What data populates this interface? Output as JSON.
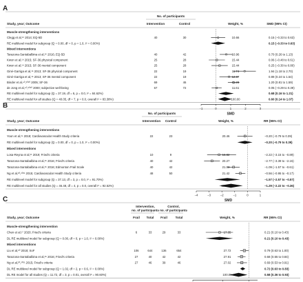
{
  "colors": {
    "text": "#222222",
    "rule": "#999999",
    "marker": "#111111",
    "refline": "#666666",
    "box": "#bbbbbb"
  },
  "chart_data": [
    {
      "type": "forest",
      "panel_label": "A",
      "header": {
        "study": "Study, year; Outcome",
        "group": "No. of participants",
        "n1": "Intervention",
        "n2": "Control",
        "weight": "Weight, %",
        "effect": "SMD (95% CI)"
      },
      "xlabel": "SMD",
      "xlim": [
        -1,
        3
      ],
      "ticks": [
        -1,
        0,
        1,
        2,
        3
      ],
      "ref": 0,
      "rows": [
        {
          "kind": "category",
          "label": "Muscle-strengthening interventions"
        },
        {
          "kind": "study",
          "label": "Clegg et al,¹⁹ 2014; EQ-5D",
          "n1": "40",
          "n2": "30",
          "weight": "10.66",
          "ci_text": "0.15 (−0.33 to 0.63)",
          "est": 0.15,
          "lo": -0.33,
          "hi": 0.63
        },
        {
          "kind": "pooled",
          "label": "RE multilevel model for subgroup (Q = 0.00, df = 0, p = 1.0, I² = 0.00%)",
          "ci_text": "0.15 (−0.33 to 0.63)",
          "est": 0.15,
          "lo": -0.33,
          "hi": 0.63
        },
        {
          "kind": "category",
          "label": "Mixed interventions"
        },
        {
          "kind": "study",
          "label": "Tarazona-Santabalbina et al,²⁵ 2016; EQ-5D",
          "n1": "40",
          "n2": "42",
          "weight": "10.96",
          "ci_text": "0.70 (0.26 to 1.13)",
          "est": 0.7,
          "lo": 0.26,
          "hi": 1.13
        },
        {
          "kind": "study",
          "label": "Kwon et al,¹⁸ 2015; SF-36 physical component",
          "n1": "25",
          "n2": "28",
          "weight": "15.44",
          "ci_text": "0.06 (−0.48 to 0.61)",
          "est": 0.06,
          "lo": -0.48,
          "hi": 0.61
        },
        {
          "kind": "study",
          "label": "Kwon et al,¹⁸ 2015; SF-36 mental component",
          "n1": "25",
          "n2": "28",
          "weight": "15.44",
          "ci_text": "0.25 (−0.30 to 0.80)",
          "est": 0.25,
          "lo": -0.3,
          "hi": 0.8
        },
        {
          "kind": "study",
          "label": "Giné-Garriga et al,¹⁵ 2013; SF-36 physical component",
          "n1": "22",
          "n2": "19",
          "weight": "11.74",
          "ci_text": "1.94 (1.18 to 2.70)",
          "est": 1.94,
          "lo": 1.18,
          "hi": 2.7
        },
        {
          "kind": "study",
          "label": "Giné-Garriga et al,¹⁵ 2013; SF-36 mental component",
          "n1": "22",
          "n2": "19",
          "weight": "12.87",
          "ci_text": "0.89 (0.24 to 1.54)",
          "est": 0.89,
          "lo": 0.24,
          "hi": 1.54
        },
        {
          "kind": "study",
          "label": "Binder et al,⁴⁰,²⁰²⁰ 2005; SF-36",
          "n1": "69",
          "n2": "46",
          "weight": "11.28",
          "ci_text": "1.20 (0.81 to 1.59)",
          "est": 1.2,
          "lo": 0.81,
          "hi": 1.59
        },
        {
          "kind": "study",
          "label": "de Jong et al,⁴⁰,²⁰²⁰ 2000; subjective well-being",
          "n1": "67",
          "n2": "72",
          "weight": "11.61",
          "ci_text": "0.05 (−0.29 to 0.39)",
          "est": 0.05,
          "lo": -0.29,
          "hi": 0.39
        },
        {
          "kind": "pooled",
          "label": "RE multilevel model for subgroup (Q = 37.19, df = 6, p = 0.0, I² = 84.62%)",
          "ci_text": "0.68 (0.16 to 1.21)",
          "est": 0.68,
          "lo": 0.16,
          "hi": 1.21
        },
        {
          "kind": "overall",
          "label": "RE multilevel model for all studies (Q = 40.05, df = 7, p = 0.0, overall I² = 83.38%)",
          "weight": "100.00",
          "ci_text": "0.60 (0.14 to 1.07)",
          "est": 0.6,
          "lo": 0.14,
          "hi": 1.07
        }
      ]
    },
    {
      "type": "forest",
      "panel_label": "B",
      "header": {
        "study": "Study, year; Outcome",
        "group": "No. of participants",
        "n1": "Intervention",
        "n2": "Control",
        "weight": "Weight, %",
        "effect": "RR (95% CI)"
      },
      "xlabel": "SMD",
      "xlim": [
        -4,
        1
      ],
      "ticks": [
        -4,
        -3,
        -2,
        -1,
        0,
        1
      ],
      "ref": 0,
      "rows": [
        {
          "kind": "category",
          "label": "Muscle-strengthening interventions"
        },
        {
          "kind": "study",
          "label": "Yoon et al,²⁴ 2018; Cardiovascular Health Study criteria",
          "n1": "22",
          "n2": "23",
          "weight": "20.46",
          "ci_text": "−0.20 (−0.79 to 0.39)",
          "est": -0.2,
          "lo": -0.79,
          "hi": 0.39
        },
        {
          "kind": "pooled",
          "label": "RE multilevel model for subgroup (Q = 0.00, df = 0, p = 1.0, I² = 0.00%)",
          "ci_text": "−0.20 (−0.79 to 0.39)",
          "est": -0.2,
          "lo": -0.79,
          "hi": 0.39
        },
        {
          "kind": "category",
          "label": "Mixed interventions"
        },
        {
          "kind": "study",
          "label": "Losa-Reyna et al,²¹ 2019; Fried's criteria",
          "n1": "10",
          "n2": "9",
          "weight": "16.82",
          "ci_text": "−2.22 (−3.15 to −0.89)",
          "est": -2.22,
          "lo": -3.15,
          "hi": -0.89
        },
        {
          "kind": "study",
          "label": "Tarazona-Santabalbina et al,²⁵ 2016; Fried's criteria",
          "n1": "40",
          "n2": "42",
          "weight": "20.27",
          "ci_text": "−2.77 (−3.39 to −2.15)",
          "est": -2.77,
          "lo": -3.39,
          "hi": -2.15
        },
        {
          "kind": "study",
          "label": "Tarazona-Santabalbina et al,²⁵ 2016; Edmonton Frail Scale",
          "n1": "40",
          "n2": "42",
          "weight": "21.03",
          "ci_text": "−1.09 (−1.57 to −0.61)",
          "est": -1.09,
          "lo": -1.57,
          "hi": -0.61
        },
        {
          "kind": "study",
          "label": "Ng et al,²⁰,²⁰²¹ 2015; Cardiovascular Health Study criteria",
          "n1": "48",
          "n2": "50",
          "weight": "21.42",
          "ci_text": "−0.56 (−0.95 to −0.17)",
          "est": -0.56,
          "lo": -0.95,
          "hi": -0.17
        },
        {
          "kind": "pooled",
          "label": "RE multilevel model for subgroup (Q = 37.13, df = 3, p = 0.0, I² = 91.70%)",
          "ci_text": "−1.57 (−2.57 to −0.57)",
          "est": -1.57,
          "lo": -2.57,
          "hi": -0.57
        },
        {
          "kind": "overall",
          "label": "RE multilevel model for all studies (Q = 46.48, df = 4, p = 0.0, overall I² = 92.52%)",
          "weight": "100.00",
          "ci_text": "−1.29 (−2.22 to −0.36)",
          "est": -1.29,
          "lo": -2.22,
          "hi": -0.36
        }
      ]
    },
    {
      "type": "forest",
      "panel_label": "C",
      "header": {
        "study": "Study, year; Outcome",
        "group1": "Intervention, no. of participants",
        "group2": "Control, no. of participants",
        "sub_frail": "Frail",
        "sub_total": "Total",
        "weight": "Weight, %",
        "effect": "RR (95% CI)"
      },
      "xlabel": "RR",
      "xlim": [
        0.05,
        1.6
      ],
      "log_scale": true,
      "ticks": [
        0.05,
        0.25,
        1
      ],
      "tick_labels": [
        "0.05",
        "0.25",
        "1"
      ],
      "ref": 1,
      "rows": [
        {
          "kind": "category",
          "label": "Muscle-strengthening intervention"
        },
        {
          "kind": "study",
          "label": "Chen et al,¹⁷ 2020; Fried's criteria",
          "f1": "6",
          "t1": "33",
          "f2": "29",
          "t2": "33",
          "weight": "17.35",
          "ci_text": "0.21 (0.10 to 0.43)",
          "est": 0.21,
          "lo": 0.1,
          "hi": 0.43
        },
        {
          "kind": "pooled",
          "label": "DL RE multilevel model for subgroup (Q = 0.00, df = 0, p = 1.0, I² = 0.00%)",
          "ci_text": "0.21 (0.10 to 0.43)",
          "est": 0.21,
          "lo": 0.1,
          "hi": 0.43
        },
        {
          "kind": "category",
          "label": "Mixed interventions"
        },
        {
          "kind": "study",
          "label": "Liu et al,²⁰ 2018; SoF",
          "f1": "106",
          "t1": "644",
          "f2": "136",
          "t2": "654",
          "weight": "27.72",
          "ci_text": "0.79 (0.63 to 1.00)",
          "est": 0.79,
          "lo": 0.63,
          "hi": 1.0
        },
        {
          "kind": "study",
          "label": "Tarazona-Santabalbina et al,²⁵ 2016; Fried's criteria",
          "f1": "27",
          "t1": "40",
          "f2": "42",
          "t2": "42",
          "weight": "27.91",
          "ci_text": "0.68 (0.55 to 0.84)",
          "est": 0.68,
          "lo": 0.55,
          "hi": 0.84
        },
        {
          "kind": "study",
          "label": "Ng et al,²⁰,²⁰²¹ 2015; Fried's criteria",
          "f1": "27",
          "t1": "46",
          "f2": "39",
          "t2": "46",
          "weight": "27.02",
          "ci_text": "0.69 (0.53 to 0.91)",
          "est": 0.69,
          "lo": 0.53,
          "hi": 0.91
        },
        {
          "kind": "pooled",
          "label": "DL RE multilevel model for subgroup (Q = 1.02, df = 2, p = 0.6, I² = 0.00%)",
          "ci_text": "0.72 (0.63 to 0.83)",
          "est": 0.72,
          "lo": 0.63,
          "hi": 0.83
        },
        {
          "kind": "overall",
          "label": "DL RE model for all studies (Q = 11.72, df = 3, p = 0.01, overall I² = 90.60%)",
          "weight": "100.00",
          "ci_text": "0.58 (0.36 to 0.93)",
          "est": 0.58,
          "lo": 0.36,
          "hi": 0.93
        }
      ]
    }
  ]
}
